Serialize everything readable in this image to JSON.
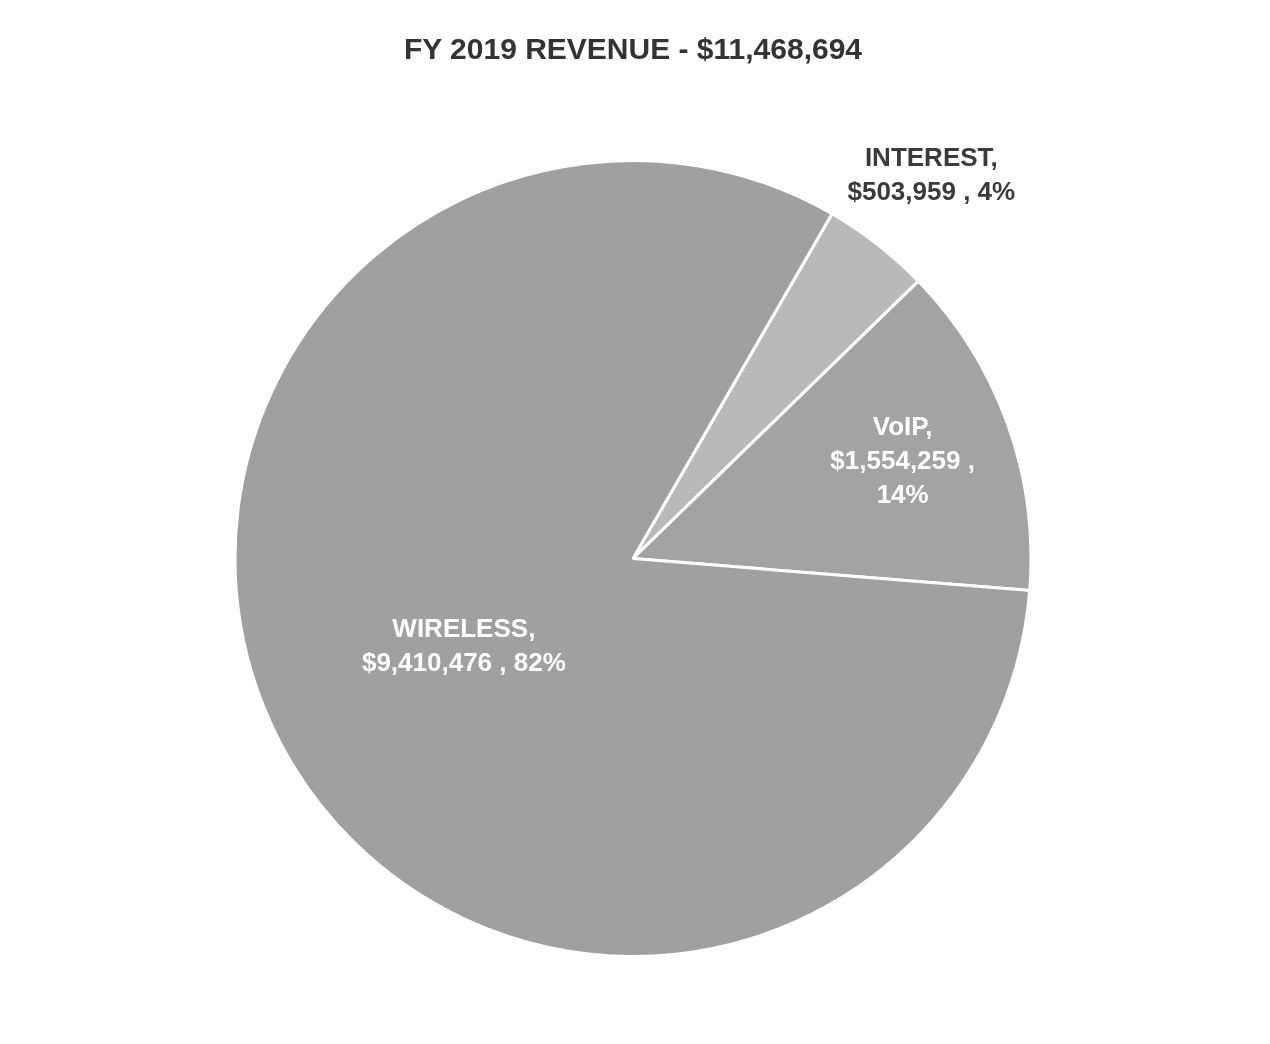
{
  "chart_data": {
    "type": "pie",
    "title": "FY 2019 REVENUE - $11,468,694",
    "categories": [
      "INTEREST",
      "VoIP",
      "WIRELESS"
    ],
    "values": [
      503959,
      1554259,
      9410476
    ],
    "colors": [
      "#b9b9b9",
      "#a3a3a3",
      "#a0a0a0"
    ],
    "value_labels": [
      ", $503,959 , 4%",
      ", $1,554,259 , 14%",
      ", $9,410,476 , 82%"
    ],
    "legend": false
  }
}
